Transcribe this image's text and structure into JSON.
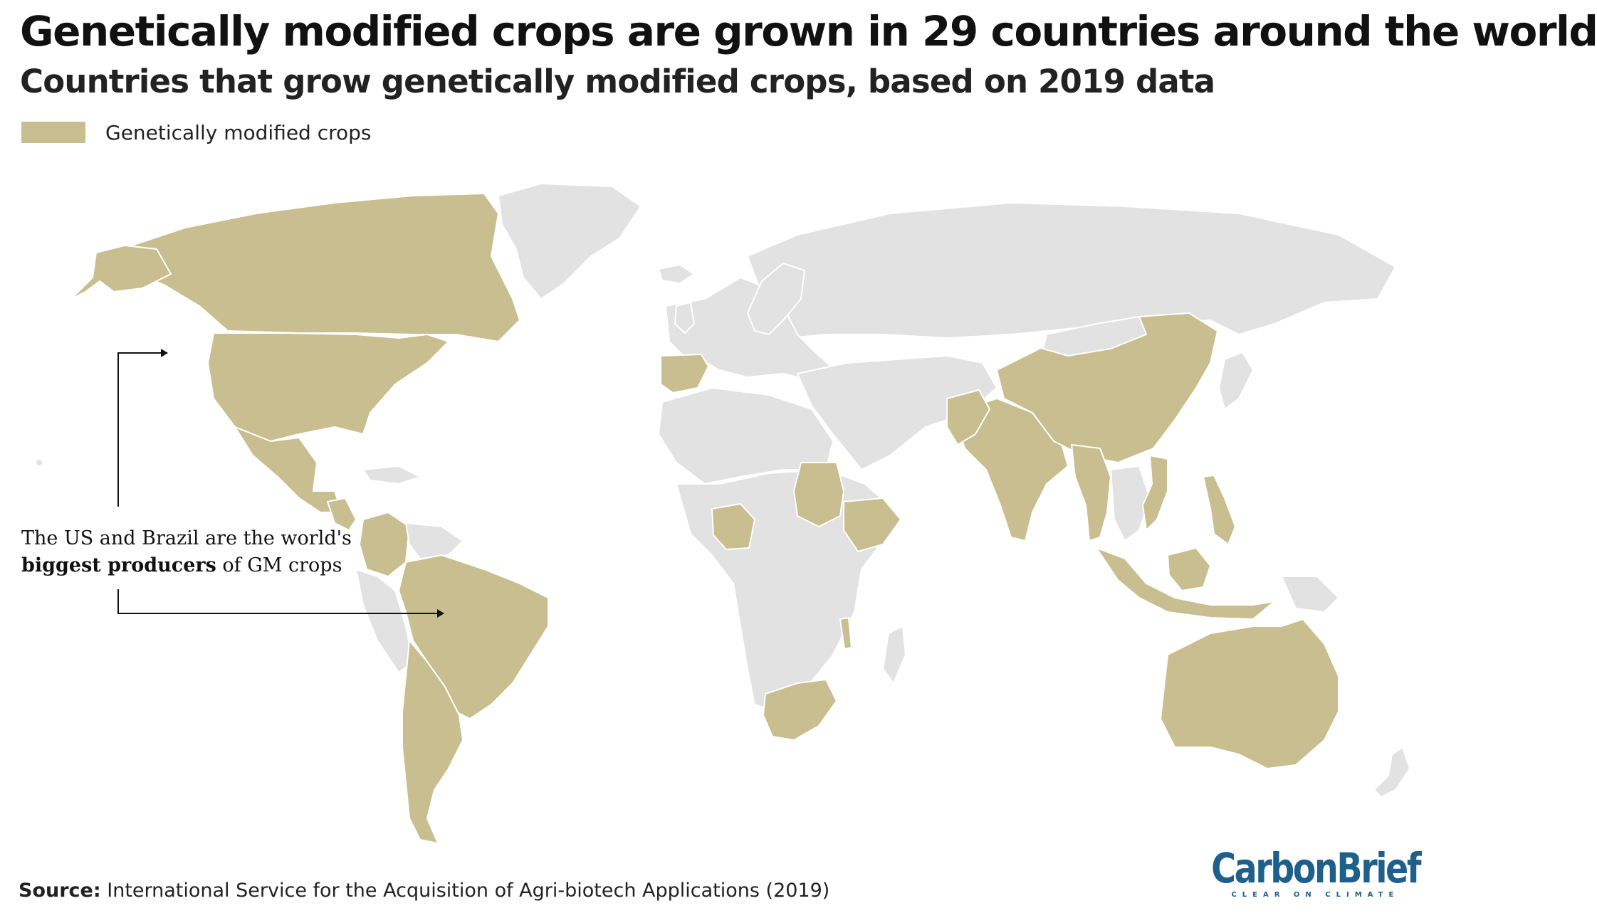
{
  "header": {
    "title": "Genetically modified crops are grown in 29 countries around the world",
    "subtitle": "Countries that grow genetically modified crops, based on 2019 data"
  },
  "legend": {
    "label": "Genetically modified crops",
    "color": "#c9be8f"
  },
  "map": {
    "gm_color": "#c9be8f",
    "other_color": "#e2e2e2",
    "border_color": "#ffffff"
  },
  "annotation": {
    "line1": "The US and Brazil are the world's",
    "bold": "biggest producers",
    "rest": " of GM crops"
  },
  "footer": {
    "source_label": "Source:",
    "source_text": " International Service for the Acquisition of Agri-biotech Applications (2019)"
  },
  "brand": {
    "name": "CarbonBrief",
    "tagline": "CLEAR ON CLIMATE",
    "color": "#1f5f8b"
  }
}
